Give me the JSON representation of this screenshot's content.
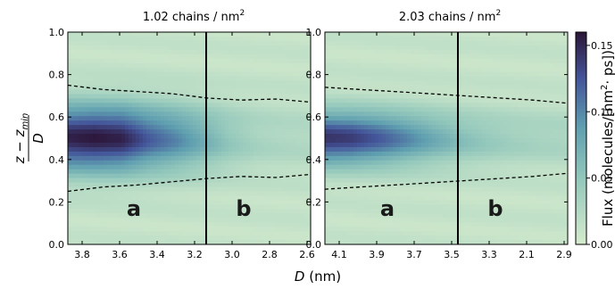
{
  "chart_data": [
    {
      "type": "heatmap",
      "title": "1.02 chains / nm²",
      "title_main": "1.02 chains / nm",
      "title_sup": "2",
      "x_ticks": [
        "3.8",
        "3.6",
        "3.4",
        "3.2",
        "3.0",
        "2.8",
        "2.6"
      ],
      "y_ticks": [
        "0.0",
        "0.2",
        "0.4",
        "0.6",
        "0.8",
        "1.0"
      ],
      "ylim": [
        0,
        1
      ],
      "divider_after_tick": "3.2",
      "regions": [
        "a",
        "b"
      ],
      "upper_boundary": [
        0.75,
        0.73,
        0.72,
        0.71,
        0.69,
        0.68,
        0.685,
        0.67
      ],
      "lower_boundary": [
        0.25,
        0.27,
        0.28,
        0.295,
        0.31,
        0.32,
        0.315,
        0.33
      ],
      "peak_flux": [
        0.15,
        0.155,
        0.15,
        0.12,
        0.1,
        0.075,
        0.05,
        0.035,
        0.03,
        0.028
      ]
    },
    {
      "type": "heatmap",
      "title": "2.03 chains / nm²",
      "title_main": "2.03 chains / nm",
      "title_sup": "2",
      "x_ticks": [
        "4.1",
        "3.9",
        "3.7",
        "3.5",
        "3.3",
        "2.1",
        "2.9"
      ],
      "y_ticks": [
        "0.0",
        "0.2",
        "0.4",
        "0.6",
        "0.8",
        "1.0"
      ],
      "ylim": [
        0,
        1
      ],
      "divider_after_tick": "3.5",
      "regions": [
        "a",
        "b"
      ],
      "upper_boundary": [
        0.74,
        0.73,
        0.72,
        0.71,
        0.7,
        0.69,
        0.68,
        0.665
      ],
      "lower_boundary": [
        0.26,
        0.27,
        0.28,
        0.29,
        0.3,
        0.31,
        0.32,
        0.335
      ],
      "peak_flux": [
        0.14,
        0.135,
        0.12,
        0.1,
        0.078,
        0.06,
        0.048,
        0.04,
        0.036,
        0.034
      ]
    }
  ],
  "y_label": "z − z_min / D",
  "y_label_num_left": "z − z",
  "y_label_num_sub": "min",
  "y_label_den": "D",
  "x_label_italic": "D",
  "x_label_rest": " (nm)",
  "colorbar": {
    "label": "Flux (molecules/[nm²· ps])",
    "label_pre": "Flux (molecules/[nm",
    "label_sup": "2",
    "label_post": "· ps])",
    "ticks": [
      "0.00",
      "0.05",
      "0.10",
      "0.15"
    ],
    "range": [
      0,
      0.16
    ]
  },
  "colors": {
    "low": "#d5ebcd",
    "mid": "#64a5b0",
    "high": "#2f1a3b"
  }
}
